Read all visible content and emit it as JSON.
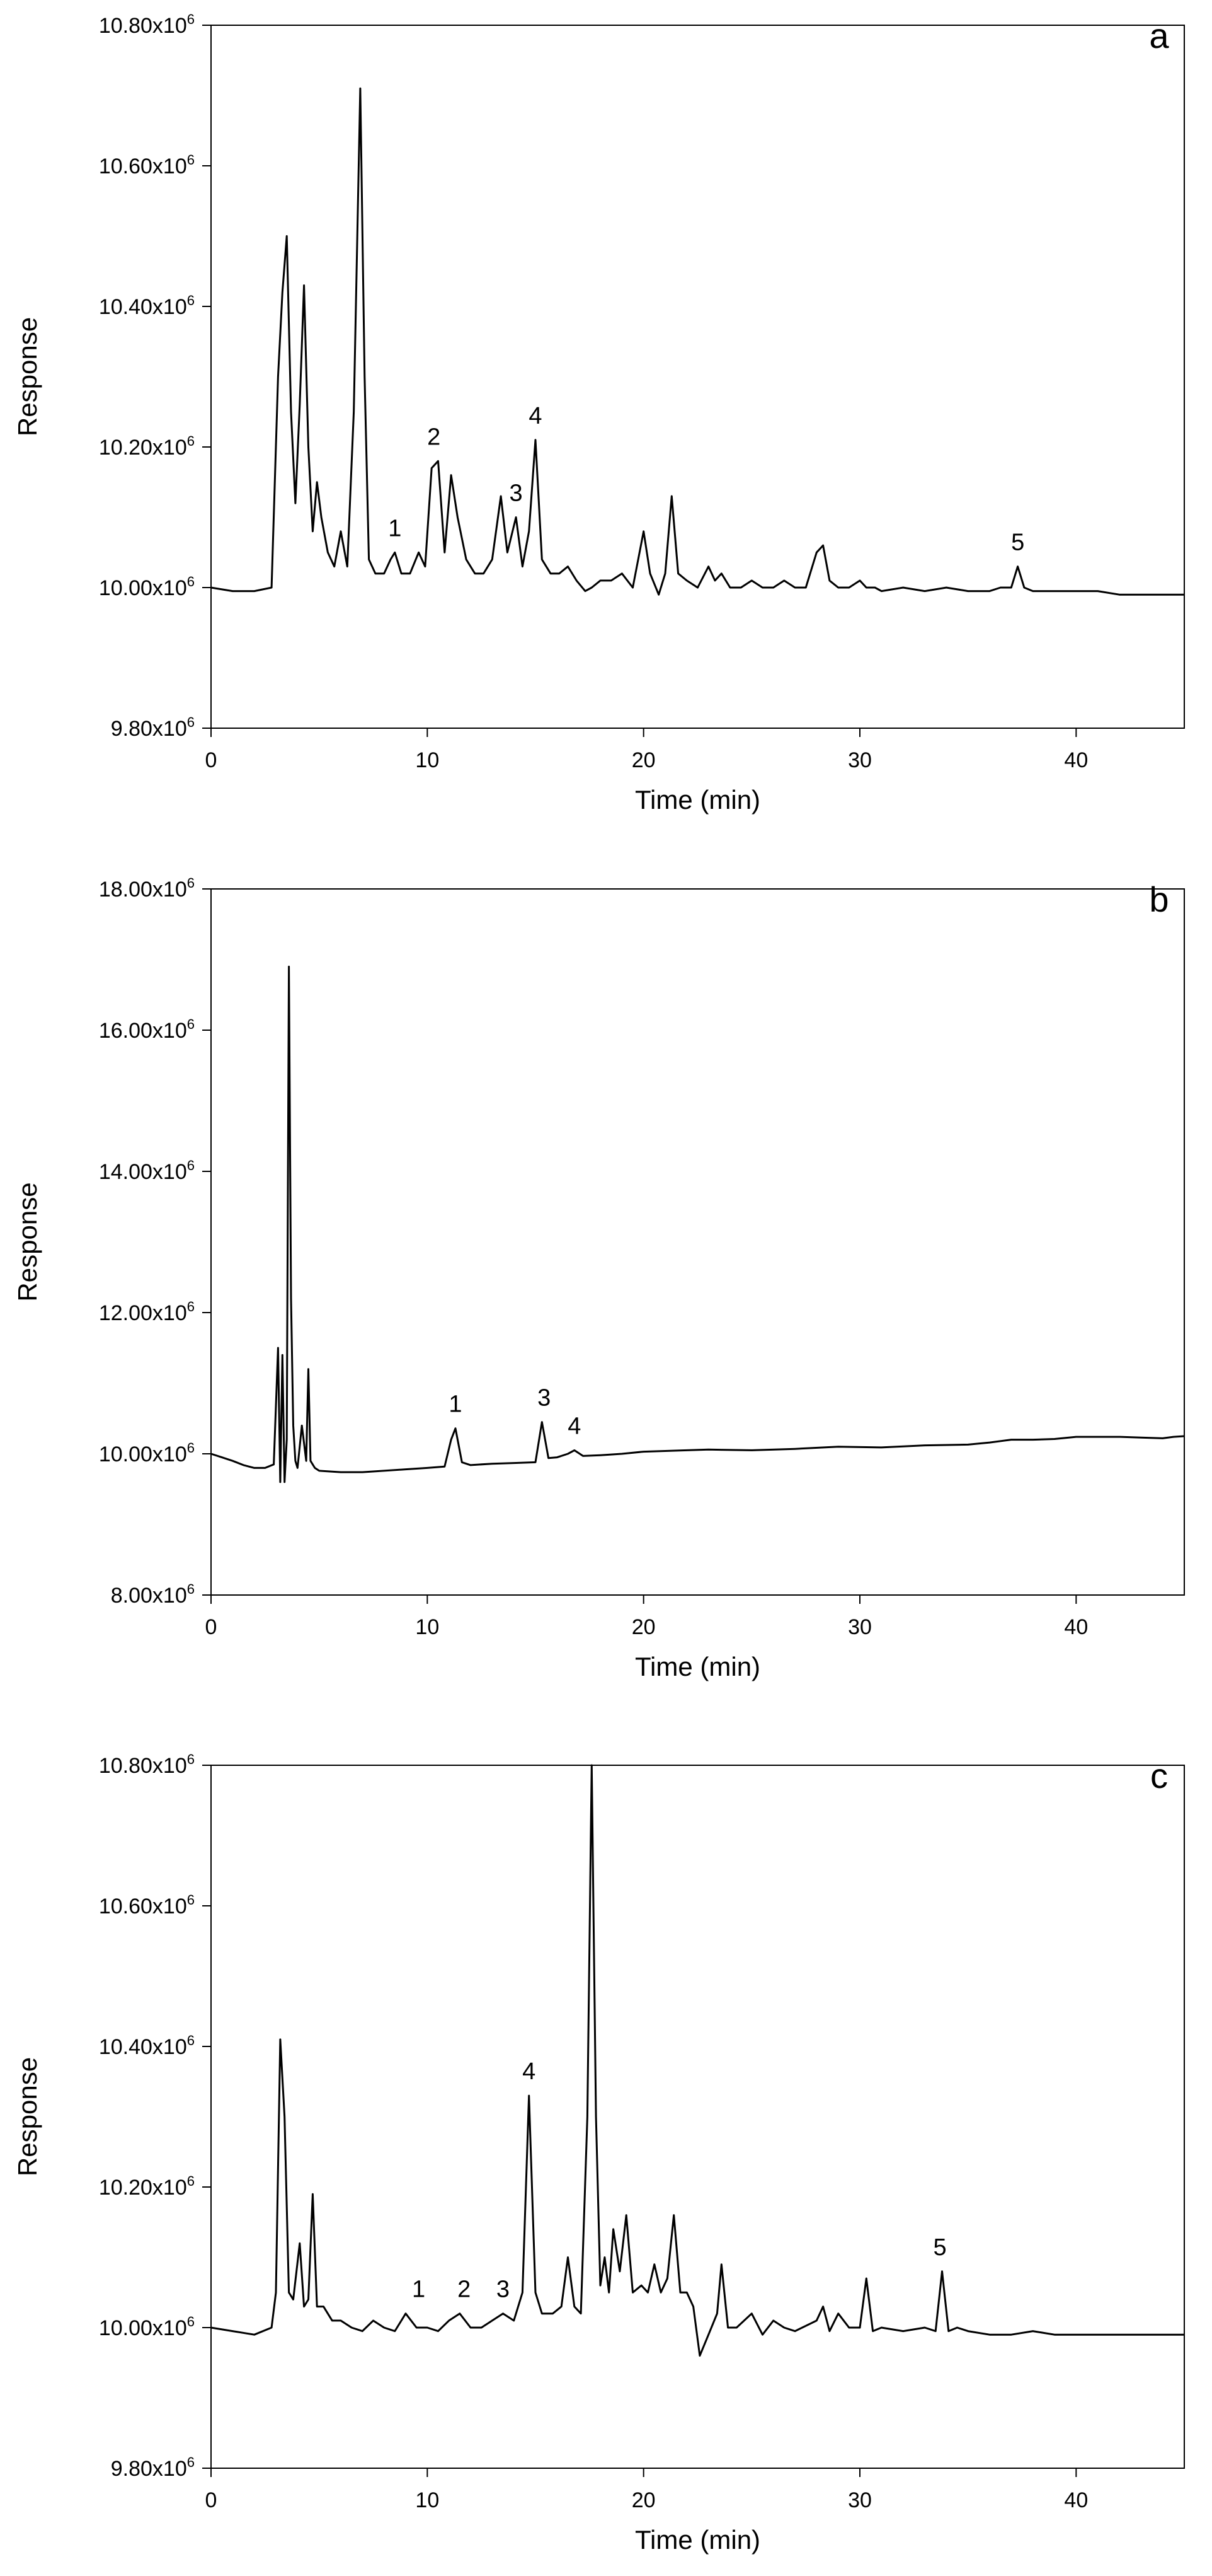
{
  "chart_data": [
    {
      "type": "line",
      "panel_label": "a",
      "xlabel": "Time (min)",
      "ylabel": "Response",
      "xlim": [
        0,
        45
      ],
      "ylim": [
        9.8,
        10.8
      ],
      "x_ticks": [
        0,
        10,
        20,
        30,
        40
      ],
      "x_tick_labels": [
        "0",
        "10",
        "20",
        "30",
        "40"
      ],
      "y_ticks": [
        9.8,
        10.0,
        10.2,
        10.4,
        10.6,
        10.8
      ],
      "y_tick_labels": [
        "9.80x10",
        "10.00x10",
        "10.20x10",
        "10.40x10",
        "10.60x10",
        "10.80x10"
      ],
      "y_tick_exponent": "6",
      "grid": false,
      "series": [
        {
          "color": "#000000",
          "x": [
            0,
            1,
            2,
            2.8,
            3.1,
            3.3,
            3.5,
            3.7,
            3.9,
            4.1,
            4.3,
            4.5,
            4.7,
            4.9,
            5.1,
            5.4,
            5.7,
            6.0,
            6.3,
            6.6,
            6.9,
            7.1,
            7.3,
            7.6,
            8.0,
            8.3,
            8.5,
            8.8,
            9.2,
            9.6,
            9.9,
            10.2,
            10.5,
            10.8,
            11.1,
            11.4,
            11.8,
            12.2,
            12.6,
            13.0,
            13.4,
            13.7,
            14.1,
            14.4,
            14.7,
            15.0,
            15.3,
            15.7,
            16.1,
            16.5,
            16.9,
            17.3,
            17.6,
            18.0,
            18.5,
            19.0,
            19.5,
            20.0,
            20.3,
            20.7,
            21.0,
            21.3,
            21.6,
            22.0,
            22.5,
            23.0,
            23.3,
            23.6,
            24.0,
            24.5,
            25.0,
            25.5,
            26.0,
            26.5,
            27.0,
            27.5,
            28.0,
            28.3,
            28.6,
            29.0,
            29.5,
            30.0,
            30.3,
            30.7,
            31.0,
            32.0,
            33.0,
            34.0,
            35.0,
            36.0,
            36.5,
            37.0,
            37.3,
            37.6,
            38.0,
            39.0,
            40.0,
            41.0,
            42.0,
            43.0,
            44.0,
            45.0
          ],
          "y": [
            10.0,
            9.995,
            9.995,
            10.0,
            10.3,
            10.42,
            10.5,
            10.25,
            10.12,
            10.26,
            10.43,
            10.2,
            10.08,
            10.15,
            10.1,
            10.05,
            10.03,
            10.08,
            10.03,
            10.25,
            10.71,
            10.3,
            10.04,
            10.02,
            10.02,
            10.04,
            10.05,
            10.02,
            10.02,
            10.05,
            10.03,
            10.17,
            10.18,
            10.05,
            10.16,
            10.1,
            10.04,
            10.02,
            10.02,
            10.04,
            10.13,
            10.05,
            10.1,
            10.03,
            10.08,
            10.21,
            10.04,
            10.02,
            10.02,
            10.03,
            10.01,
            9.995,
            10.0,
            10.01,
            10.01,
            10.02,
            10.0,
            10.08,
            10.02,
            9.99,
            10.02,
            10.13,
            10.02,
            10.01,
            10.0,
            10.03,
            10.01,
            10.02,
            10.0,
            10.0,
            10.01,
            10.0,
            10.0,
            10.01,
            10.0,
            10.0,
            10.05,
            10.06,
            10.01,
            10.0,
            10.0,
            10.01,
            10.0,
            10.0,
            9.995,
            10.0,
            9.995,
            10.0,
            9.995,
            9.995,
            10.0,
            10.0,
            10.03,
            10.0,
            9.995,
            9.995,
            9.995,
            9.995,
            9.99,
            9.99,
            9.99,
            9.99
          ]
        }
      ],
      "annotations": [
        {
          "text": "1",
          "x": 8.5,
          "y": 10.05
        },
        {
          "text": "2",
          "x": 10.3,
          "y": 10.18
        },
        {
          "text": "3",
          "x": 14.1,
          "y": 10.1
        },
        {
          "text": "4",
          "x": 15.0,
          "y": 10.21
        },
        {
          "text": "5",
          "x": 37.3,
          "y": 10.03
        }
      ]
    },
    {
      "type": "line",
      "panel_label": "b",
      "xlabel": "Time (min)",
      "ylabel": "Response",
      "xlim": [
        0,
        45
      ],
      "ylim": [
        8.0,
        18.0
      ],
      "x_ticks": [
        0,
        10,
        20,
        30,
        40
      ],
      "x_tick_labels": [
        "0",
        "10",
        "20",
        "30",
        "40"
      ],
      "y_ticks": [
        8.0,
        10.0,
        12.0,
        14.0,
        16.0,
        18.0
      ],
      "y_tick_labels": [
        "8.00x10",
        "10.00x10",
        "12.00x10",
        "14.00x10",
        "16.00x10",
        "18.00x10"
      ],
      "y_tick_exponent": "6",
      "grid": false,
      "series": [
        {
          "color": "#000000",
          "x": [
            0,
            0.5,
            1,
            1.5,
            2,
            2.5,
            2.9,
            3.1,
            3.2,
            3.3,
            3.4,
            3.5,
            3.6,
            3.7,
            3.8,
            3.9,
            4.0,
            4.2,
            4.4,
            4.5,
            4.6,
            4.8,
            5.0,
            6.0,
            7.0,
            8.0,
            9.0,
            10.0,
            10.8,
            11.1,
            11.3,
            11.6,
            12.0,
            13.0,
            14.0,
            15.0,
            15.3,
            15.6,
            16.0,
            16.5,
            16.8,
            17.2,
            18.0,
            19.0,
            20.0,
            21.0,
            22.0,
            23.0,
            25.0,
            27.0,
            29.0,
            31.0,
            33.0,
            35.0,
            36.0,
            37.0,
            38.0,
            39.0,
            40.0,
            41.0,
            42.0,
            43.0,
            44.0,
            44.5,
            45.0
          ],
          "y": [
            10.0,
            9.95,
            9.9,
            9.84,
            9.8,
            9.8,
            9.85,
            11.5,
            9.6,
            11.4,
            9.6,
            10.2,
            16.9,
            12.2,
            10.4,
            9.9,
            9.8,
            10.4,
            9.9,
            11.2,
            9.9,
            9.8,
            9.76,
            9.74,
            9.74,
            9.76,
            9.78,
            9.8,
            9.82,
            10.2,
            10.36,
            9.88,
            9.84,
            9.86,
            9.87,
            9.88,
            10.45,
            9.94,
            9.95,
            10.0,
            10.05,
            9.97,
            9.98,
            10.0,
            10.03,
            10.04,
            10.05,
            10.06,
            10.05,
            10.07,
            10.1,
            10.09,
            10.12,
            10.13,
            10.16,
            10.2,
            10.2,
            10.21,
            10.24,
            10.24,
            10.24,
            10.23,
            10.22,
            10.24,
            10.25
          ]
        }
      ],
      "annotations": [
        {
          "text": "1",
          "x": 11.3,
          "y": 10.36
        },
        {
          "text": "3",
          "x": 15.4,
          "y": 10.45
        },
        {
          "text": "4",
          "x": 16.8,
          "y": 10.05
        }
      ]
    },
    {
      "type": "line",
      "panel_label": "c",
      "xlabel": "Time (min)",
      "ylabel": "Response",
      "xlim": [
        0,
        45
      ],
      "ylim": [
        9.8,
        10.8
      ],
      "x_ticks": [
        0,
        10,
        20,
        30,
        40
      ],
      "x_tick_labels": [
        "0",
        "10",
        "20",
        "30",
        "40"
      ],
      "y_ticks": [
        9.8,
        10.0,
        10.2,
        10.4,
        10.6,
        10.8
      ],
      "y_tick_labels": [
        "9.80x10",
        "10.00x10",
        "10.20x10",
        "10.40x10",
        "10.60x10",
        "10.80x10"
      ],
      "y_tick_exponent": "6",
      "grid": false,
      "series": [
        {
          "color": "#000000",
          "x": [
            0,
            1,
            2,
            2.8,
            3.0,
            3.2,
            3.4,
            3.6,
            3.8,
            4.1,
            4.3,
            4.5,
            4.7,
            4.9,
            5.2,
            5.6,
            6.0,
            6.5,
            7.0,
            7.5,
            8.0,
            8.5,
            9.0,
            9.5,
            10.0,
            10.5,
            11.0,
            11.5,
            12.0,
            12.5,
            13.0,
            13.5,
            14.0,
            14.4,
            14.7,
            15.0,
            15.3,
            15.8,
            16.2,
            16.5,
            16.8,
            17.1,
            17.4,
            17.6,
            17.8,
            18.0,
            18.2,
            18.4,
            18.6,
            18.9,
            19.2,
            19.5,
            19.9,
            20.2,
            20.5,
            20.8,
            21.1,
            21.4,
            21.7,
            22.0,
            22.3,
            22.6,
            23.0,
            23.4,
            23.6,
            23.9,
            24.3,
            25.0,
            25.5,
            26.0,
            26.5,
            27.0,
            28.0,
            28.3,
            28.6,
            29.0,
            29.5,
            30.0,
            30.3,
            30.6,
            31.0,
            32.0,
            33.0,
            33.5,
            33.8,
            34.1,
            34.5,
            35.0,
            36.0,
            37.0,
            38.0,
            39.0,
            40.0,
            41.0,
            42.0,
            43.0,
            44.0,
            45.0
          ],
          "y": [
            10.0,
            9.995,
            9.99,
            10.0,
            10.05,
            10.41,
            10.3,
            10.05,
            10.04,
            10.12,
            10.03,
            10.04,
            10.19,
            10.03,
            10.03,
            10.01,
            10.01,
            10.0,
            9.995,
            10.01,
            10.0,
            9.995,
            10.02,
            10.0,
            10.0,
            9.995,
            10.01,
            10.02,
            10.0,
            10.0,
            10.01,
            10.02,
            10.01,
            10.05,
            10.33,
            10.05,
            10.02,
            10.02,
            10.03,
            10.1,
            10.03,
            10.02,
            10.3,
            10.8,
            10.3,
            10.06,
            10.1,
            10.05,
            10.14,
            10.08,
            10.16,
            10.05,
            10.06,
            10.05,
            10.09,
            10.05,
            10.07,
            10.16,
            10.05,
            10.05,
            10.03,
            9.96,
            9.99,
            10.02,
            10.09,
            10.0,
            10.0,
            10.02,
            9.99,
            10.01,
            10.0,
            9.995,
            10.01,
            10.03,
            9.995,
            10.02,
            10.0,
            10.0,
            10.07,
            9.995,
            10.0,
            9.995,
            10.0,
            9.995,
            10.08,
            9.995,
            10.0,
            9.995,
            9.99,
            9.99,
            9.995,
            9.99,
            9.99,
            9.99,
            9.99,
            9.99,
            9.99,
            9.99
          ]
        }
      ],
      "annotations": [
        {
          "text": "1",
          "x": 9.6,
          "y": 10.02
        },
        {
          "text": "2",
          "x": 11.7,
          "y": 10.02
        },
        {
          "text": "3",
          "x": 13.5,
          "y": 10.02
        },
        {
          "text": "4",
          "x": 14.7,
          "y": 10.33
        },
        {
          "text": "5",
          "x": 33.7,
          "y": 10.08
        }
      ]
    }
  ]
}
